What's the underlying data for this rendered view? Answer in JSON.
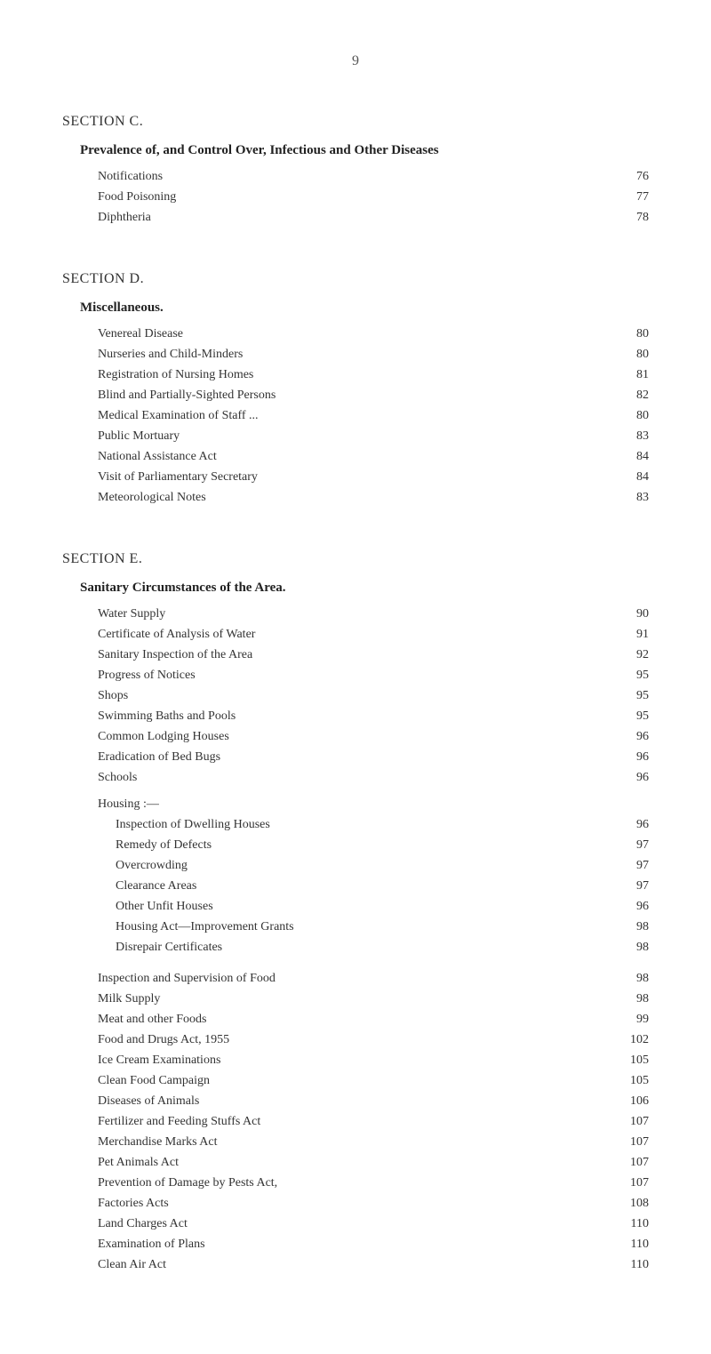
{
  "pageNumber": "9",
  "sectionC": {
    "header": "SECTION C.",
    "subheader": "Prevalence of, and Control Over, Infectious and Other Diseases",
    "items": [
      {
        "label": "Notifications",
        "page": "76"
      },
      {
        "label": "Food Poisoning",
        "page": "77"
      },
      {
        "label": "Diphtheria",
        "page": "78"
      }
    ]
  },
  "sectionD": {
    "header": "SECTION D.",
    "subheader": "Miscellaneous.",
    "items": [
      {
        "label": "Venereal Disease",
        "page": "80"
      },
      {
        "label": "Nurseries and Child-Minders",
        "page": "80"
      },
      {
        "label": "Registration of Nursing Homes",
        "page": "81"
      },
      {
        "label": "Blind and Partially-Sighted Persons",
        "page": "82"
      },
      {
        "label": "Medical Examination of Staff ...",
        "page": "80"
      },
      {
        "label": "Public Mortuary",
        "page": "83"
      },
      {
        "label": "National Assistance Act",
        "page": "84"
      },
      {
        "label": "Visit of Parliamentary Secretary",
        "page": "84"
      },
      {
        "label": "Meteorological Notes",
        "page": "83"
      }
    ]
  },
  "sectionE": {
    "header": "SECTION E.",
    "subheader": "Sanitary Circumstances of the Area.",
    "group1": [
      {
        "label": "Water Supply",
        "page": "90"
      },
      {
        "label": "Certificate of Analysis of Water",
        "page": "91"
      },
      {
        "label": "Sanitary Inspection of the Area",
        "page": "92"
      },
      {
        "label": "Progress of Notices",
        "page": "95"
      },
      {
        "label": "Shops",
        "page": "95"
      },
      {
        "label": "Swimming Baths and Pools",
        "page": "95"
      },
      {
        "label": "Common Lodging Houses",
        "page": "96"
      },
      {
        "label": "Eradication of Bed Bugs",
        "page": "96"
      },
      {
        "label": "Schools",
        "page": "96"
      }
    ],
    "housingLabel": "Housing :—",
    "housingItems": [
      {
        "label": "Inspection of Dwelling Houses",
        "page": "96"
      },
      {
        "label": "Remedy of Defects",
        "page": "97"
      },
      {
        "label": "Overcrowding",
        "page": "97"
      },
      {
        "label": "Clearance Areas",
        "page": "97"
      },
      {
        "label": "Other Unfit Houses",
        "page": "96"
      },
      {
        "label": "Housing Act—Improvement Grants",
        "page": "98"
      },
      {
        "label": "Disrepair Certificates",
        "page": "98"
      }
    ],
    "group2": [
      {
        "label": "Inspection and Supervision of Food",
        "page": "98"
      },
      {
        "label": "Milk Supply",
        "page": "98"
      },
      {
        "label": "Meat and other Foods",
        "page": "99"
      },
      {
        "label": "Food and Drugs Act, 1955",
        "page": "102"
      },
      {
        "label": "Ice Cream Examinations",
        "page": "105"
      },
      {
        "label": "Clean Food Campaign",
        "page": "105"
      },
      {
        "label": "Diseases of Animals",
        "page": "106"
      },
      {
        "label": "Fertilizer and Feeding Stuffs Act",
        "page": "107"
      },
      {
        "label": "Merchandise Marks Act",
        "page": "107"
      },
      {
        "label": "Pet Animals Act",
        "page": "107"
      },
      {
        "label": "Prevention of Damage by Pests Act,",
        "page": "107"
      },
      {
        "label": "Factories Acts",
        "page": "108"
      },
      {
        "label": "Land Charges Act",
        "page": "110"
      },
      {
        "label": "Examination of Plans",
        "page": "110"
      },
      {
        "label": "Clean Air Act",
        "page": "110"
      }
    ]
  }
}
